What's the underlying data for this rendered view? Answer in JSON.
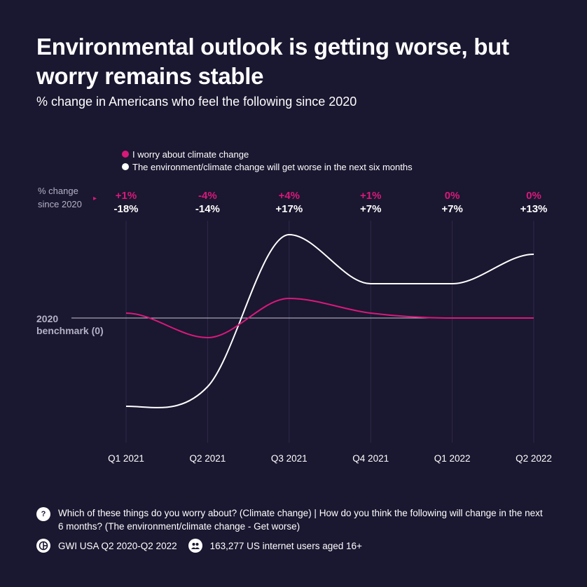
{
  "title": "Environmental outlook is getting worse, but worry remains stable",
  "subtitle": "% change in Americans who feel the following since 2020",
  "colors": {
    "background": "#1a1730",
    "worry": "#d9197a",
    "outlook": "#ffffff",
    "muted": "#b3b1c7"
  },
  "legend": [
    {
      "label": "I worry about climate change",
      "color": "#d9197a"
    },
    {
      "label": "The environment/climate change will get worse in the next six months",
      "color": "#ffffff"
    }
  ],
  "header": {
    "line1": "% change",
    "line2": "since 2020",
    "arrow": "▸"
  },
  "benchmark": {
    "line1": "2020",
    "line2": "benchmark (0)"
  },
  "chart_data": {
    "type": "line",
    "categories": [
      "Q1 2021",
      "Q2 2021",
      "Q3 2021",
      "Q4 2021",
      "Q1 2022",
      "Q2 2022"
    ],
    "series": [
      {
        "name": "I worry about climate change",
        "color": "#d9197a",
        "values": [
          1,
          -4,
          4,
          1,
          0,
          0
        ],
        "labels": [
          "+1%",
          "-4%",
          "+4%",
          "+1%",
          "0%",
          "0%"
        ]
      },
      {
        "name": "The environment/climate change will get worse in the next six months",
        "color": "#ffffff",
        "values": [
          -18,
          -14,
          17,
          7,
          7,
          13
        ],
        "labels": [
          "-18%",
          "-14%",
          "+17%",
          "+7%",
          "+7%",
          "+13%"
        ]
      }
    ],
    "ylim": [
      -25,
      22
    ],
    "baseline": 0,
    "grid": "vertical"
  },
  "footer": {
    "question_icon": "?",
    "question": "Which of these things do you worry about? (Climate change) | How do you think the following will change in the next 6 months? (The environment/climate change - Get worse)",
    "source_icon": "gwi-logo-icon",
    "source": "GWI USA Q2 2020-Q2 2022",
    "audience_icon": "people-icon",
    "audience": "163,277 US internet users aged 16+"
  }
}
